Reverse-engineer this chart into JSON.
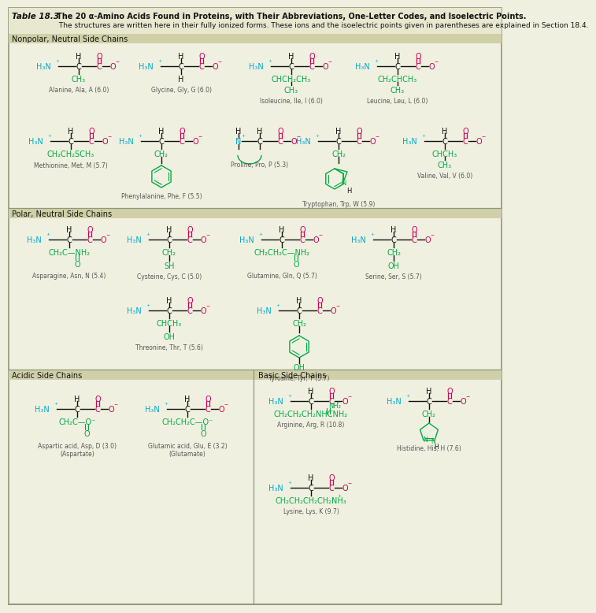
{
  "bg": "#f0f0e0",
  "hdr_bg": "#e8e8d0",
  "sec_bg": "#d0d0a8",
  "cyan": "#00aacc",
  "magenta": "#cc0055",
  "green": "#00aa44",
  "black": "#111111",
  "gray": "#555555",
  "border": "#909878",
  "title_table": "Table 18.3",
  "title_bold": "The 20 α-Amino Acids Found in Proteins, with Their Abbreviations, One-Letter Codes, and Isoelectric Points.",
  "title_rest": " The structures are written here in their fully ionized forms. These ions and the isoelectric points given in parentheses are explained in Section 18.4.",
  "sec1": "Nonpolar, Neutral Side Chains",
  "sec2": "Polar, Neutral Side Chains",
  "sec3a": "Acidic Side Chains",
  "sec3b": "Basic Side Chains"
}
